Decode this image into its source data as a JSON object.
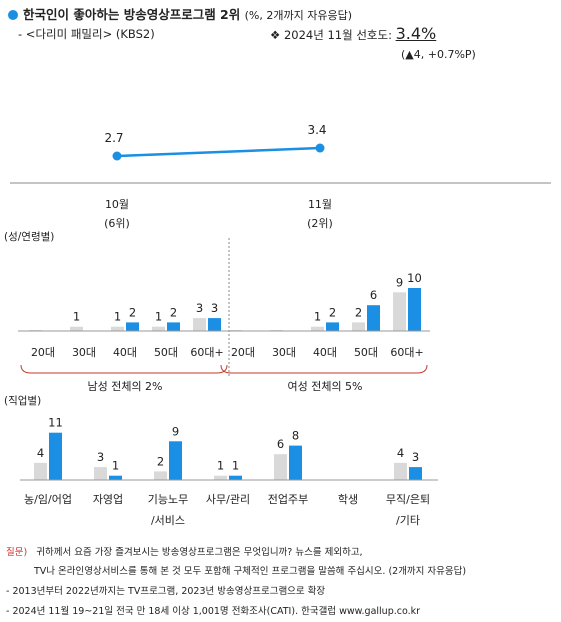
{
  "header": {
    "title": "한국인이 좋아하는 방송영상프로그램 2위",
    "title_suffix": "(%, 2개까지 자유응답)",
    "program": "- <다리미 패밀리> (KBS2)",
    "pref_label": "❖ 2024년 11월 선호도:",
    "pref_value": "3.4%",
    "pref_change": "(▲4, +0.7%P)"
  },
  "colors": {
    "accent": "#1a8fe3",
    "past": "#d9d9d9",
    "bracket": "#c0392b"
  },
  "chart_data": [
    {
      "type": "line",
      "categories": [
        "10월",
        "11월"
      ],
      "sublabels": [
        "(6위)",
        "(2위)"
      ],
      "values": [
        2.7,
        3.4
      ]
    },
    {
      "type": "bar",
      "section_label": "(성/연령별)",
      "groups": [
        {
          "caption": "남성 전체의 2%",
          "categories": [
            "20대",
            "30대",
            "40대",
            "50대",
            "60대+"
          ],
          "series": [
            {
              "values": [
                0,
                1,
                1,
                1,
                3
              ]
            },
            {
              "values": [
                0,
                0,
                2,
                2,
                3
              ]
            }
          ]
        },
        {
          "caption": "여성 전체의 5%",
          "categories": [
            "20대",
            "30대",
            "40대",
            "50대",
            "60대+"
          ],
          "series": [
            {
              "values": [
                0,
                0,
                1,
                2,
                9
              ]
            },
            {
              "values": [
                0,
                0,
                2,
                6,
                10
              ]
            }
          ]
        }
      ]
    },
    {
      "type": "bar",
      "section_label": "(직업별)",
      "categories": [
        "농/임/어업",
        "자영업",
        "기능노무|/서비스",
        "사무/관리",
        "전업주부",
        "학생",
        "무직/은퇴|/기타"
      ],
      "series": [
        {
          "values": [
            4,
            3,
            2,
            1,
            6,
            0,
            4
          ]
        },
        {
          "values": [
            11,
            1,
            9,
            1,
            8,
            0,
            3
          ]
        }
      ]
    }
  ],
  "notes": {
    "q_label": "질문)",
    "q_line1": "귀하께서 요즘 가장 즐겨보시는 방송영상프로그램은 무엇입니까? 뉴스를 제외하고,",
    "q_line2": "TV나 온라인영상서비스를 통해 본 것 모두 포함해 구체적인 프로그램을 말씀해 주십시오. (2개까지 자유응답)",
    "n1": "- 2013년부터 2022년까지는 TV프로그램, 2023년 방송영상프로그램으로 확장",
    "n2": "- 2024년 11월 19~21일 전국 만 18세 이상 1,001명 전화조사(CATI). 한국갤럽 www.gallup.co.kr"
  }
}
